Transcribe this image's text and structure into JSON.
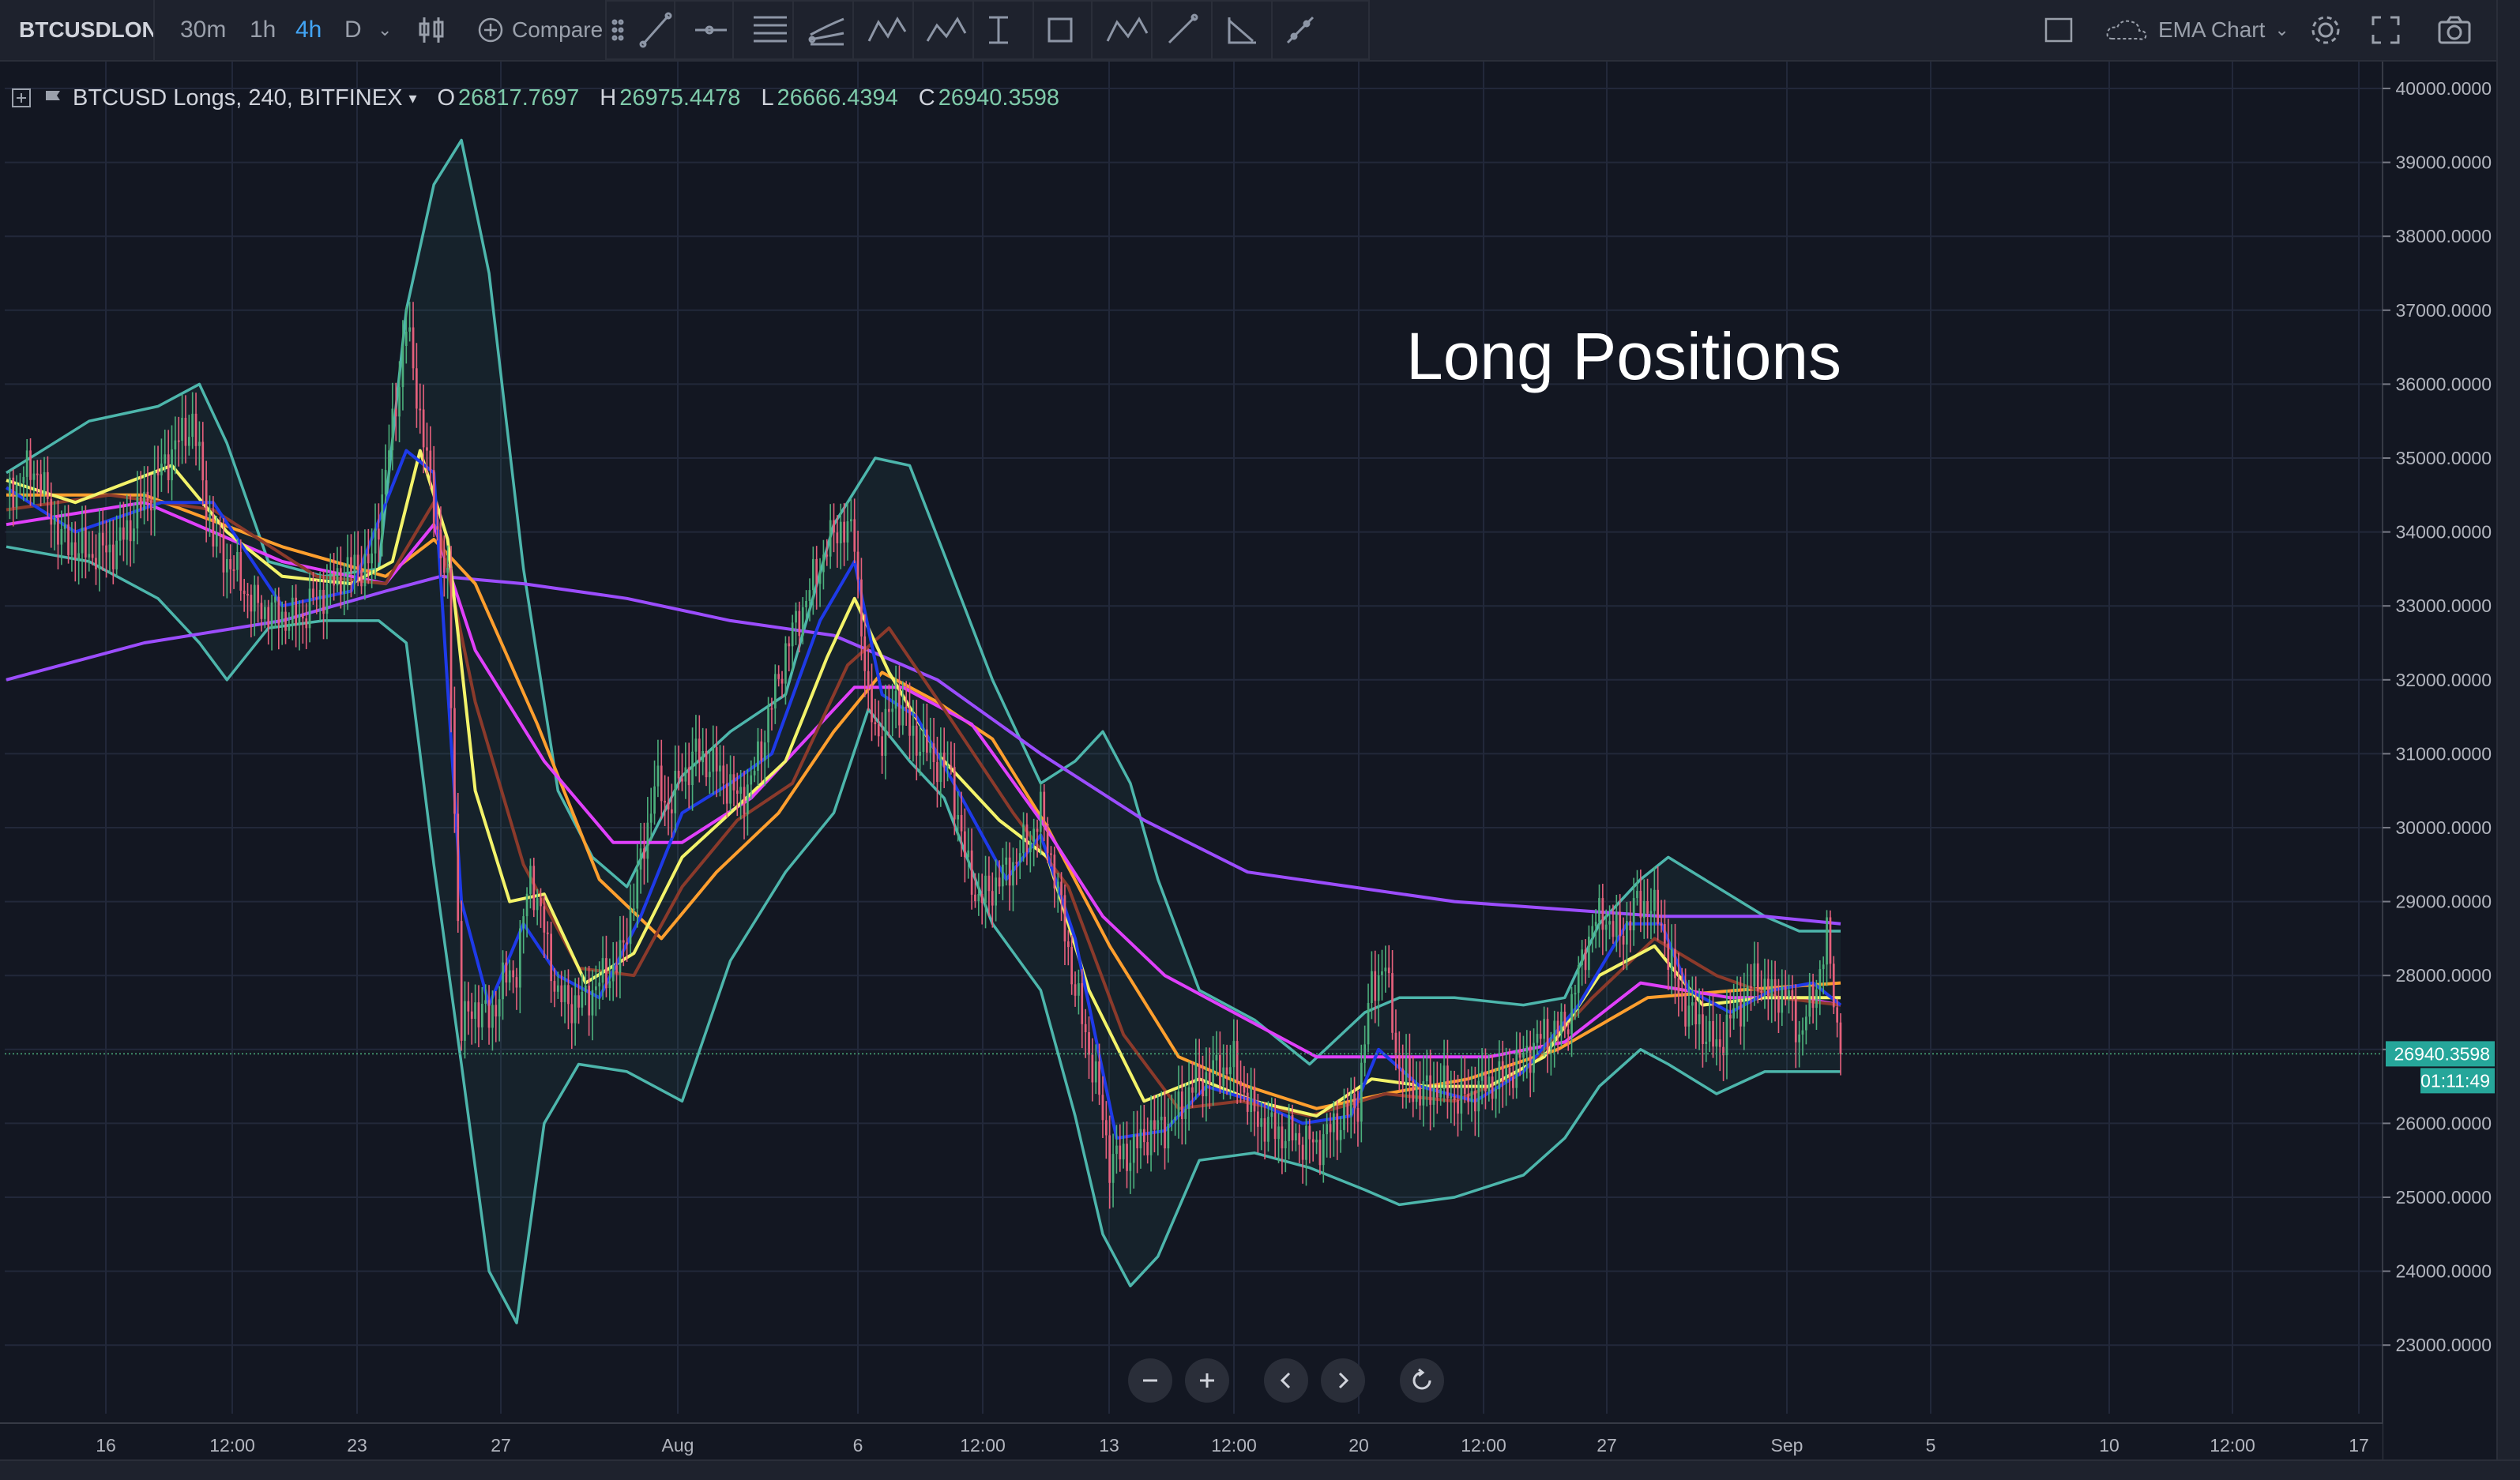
{
  "toolbar": {
    "symbol": "BTCUSDLON",
    "timeframes": [
      "30m",
      "1h",
      "4h",
      "D"
    ],
    "active_timeframe": "4h",
    "compare_label": "Compare",
    "chart_name": "EMA Chart",
    "icons": [
      "bar-style-icon",
      "compare-plus-icon",
      "drag-handle-icon",
      "trend-line-icon",
      "horizontal-ray-icon",
      "parallel-channel-icon",
      "pitchfork-icon",
      "xabcd-pattern-icon",
      "abcd-pattern-icon",
      "date-range-icon",
      "rectangle-icon",
      "abc-pattern-icon",
      "arrow-line-icon",
      "angle-icon",
      "cross-line-icon",
      "layout-icon",
      "settings-icon",
      "fullscreen-icon",
      "camera-icon"
    ]
  },
  "legend": {
    "title": "BTCUSD Longs, 240, BITFINEX",
    "o_label": "O",
    "o_value": "26817.7697",
    "h_label": "H",
    "h_value": "26975.4478",
    "l_label": "L",
    "l_value": "26666.4394",
    "c_label": "C",
    "c_value": "26940.3598"
  },
  "price_badge": {
    "price": "26940.3598",
    "countdown": "01:11:49",
    "color": "#26a69a"
  },
  "colors": {
    "background": "#131722",
    "grid": "#22283a",
    "up": "#4caf7c",
    "down": "#e5607c",
    "bollinger": "#4db6ac",
    "ema_blue": "#1e3ae8",
    "ema_yellow": "#f3f36a",
    "ema_brown": "#8b3a2b",
    "ema_magenta": "#e040fb",
    "ema_orange": "#ff9f2e",
    "ema_purple": "#9c4dff"
  },
  "chart_data": {
    "type": "candlestick",
    "title": "Long Positions",
    "y_axis_labels": [
      "40000.0000",
      "39000.0000",
      "38000.0000",
      "37000.0000",
      "36000.0000",
      "35000.0000",
      "34000.0000",
      "33000.0000",
      "32000.0000",
      "31000.0000",
      "30000.0000",
      "29000.0000",
      "28000.0000",
      "27000.0000",
      "26000.0000",
      "25000.0000",
      "24000.0000",
      "23000.0000"
    ],
    "ylim": [
      22100,
      40300
    ],
    "x_axis_labels": [
      "16",
      "12:00",
      "23",
      "27",
      "Aug",
      "6",
      "12:00",
      "13",
      "12:00",
      "20",
      "12:00",
      "27",
      "Sep",
      "5",
      "10",
      "12:00",
      "17"
    ],
    "grid": true,
    "close_path": [
      [
        0,
        34500
      ],
      [
        8,
        34900
      ],
      [
        16,
        33900
      ],
      [
        24,
        33700
      ],
      [
        32,
        33800
      ],
      [
        40,
        34400
      ],
      [
        48,
        35100
      ],
      [
        54,
        35500
      ],
      [
        60,
        33900
      ],
      [
        66,
        33500
      ],
      [
        72,
        33000
      ],
      [
        78,
        32900
      ],
      [
        84,
        32800
      ],
      [
        92,
        33200
      ],
      [
        100,
        33500
      ],
      [
        106,
        33600
      ],
      [
        112,
        35400
      ],
      [
        116,
        36800
      ],
      [
        120,
        35600
      ],
      [
        124,
        34300
      ],
      [
        128,
        33200
      ],
      [
        132,
        27300
      ],
      [
        136,
        27600
      ],
      [
        140,
        27400
      ],
      [
        144,
        27900
      ],
      [
        148,
        28100
      ],
      [
        152,
        29400
      ],
      [
        156,
        28600
      ],
      [
        160,
        27700
      ],
      [
        166,
        27600
      ],
      [
        172,
        27900
      ],
      [
        178,
        28200
      ],
      [
        184,
        29500
      ],
      [
        188,
        30600
      ],
      [
        192,
        30300
      ],
      [
        196,
        30700
      ],
      [
        200,
        31000
      ],
      [
        206,
        30800
      ],
      [
        212,
        30400
      ],
      [
        216,
        30600
      ],
      [
        220,
        31300
      ],
      [
        226,
        32400
      ],
      [
        232,
        33100
      ],
      [
        238,
        33800
      ],
      [
        242,
        34100
      ],
      [
        246,
        33900
      ],
      [
        250,
        31600
      ],
      [
        254,
        31200
      ],
      [
        258,
        31800
      ],
      [
        262,
        31300
      ],
      [
        268,
        31000
      ],
      [
        274,
        30700
      ],
      [
        278,
        29600
      ],
      [
        282,
        29000
      ],
      [
        286,
        29200
      ],
      [
        290,
        29400
      ],
      [
        296,
        29800
      ],
      [
        300,
        30200
      ],
      [
        304,
        29400
      ],
      [
        310,
        27800
      ],
      [
        316,
        26600
      ],
      [
        320,
        25500
      ],
      [
        326,
        25600
      ],
      [
        332,
        25900
      ],
      [
        338,
        26000
      ],
      [
        344,
        26500
      ],
      [
        350,
        26700
      ],
      [
        356,
        26800
      ],
      [
        362,
        26100
      ],
      [
        368,
        25900
      ],
      [
        374,
        25800
      ],
      [
        380,
        25700
      ],
      [
        386,
        26000
      ],
      [
        392,
        26300
      ],
      [
        396,
        27900
      ],
      [
        400,
        28100
      ],
      [
        404,
        26700
      ],
      [
        410,
        26400
      ],
      [
        416,
        26500
      ],
      [
        422,
        26300
      ],
      [
        428,
        26500
      ],
      [
        434,
        26600
      ],
      [
        440,
        26900
      ],
      [
        446,
        27200
      ],
      [
        452,
        27300
      ],
      [
        456,
        28000
      ],
      [
        460,
        28700
      ],
      [
        464,
        28800
      ],
      [
        468,
        28500
      ],
      [
        472,
        28900
      ],
      [
        476,
        29000
      ],
      [
        480,
        28700
      ],
      [
        484,
        27900
      ],
      [
        488,
        27500
      ],
      [
        492,
        27300
      ],
      [
        496,
        27000
      ],
      [
        500,
        27400
      ],
      [
        504,
        27700
      ],
      [
        508,
        28000
      ],
      [
        512,
        27700
      ],
      [
        516,
        27800
      ],
      [
        520,
        27200
      ],
      [
        524,
        27700
      ],
      [
        528,
        28500
      ],
      [
        532,
        26940
      ]
    ],
    "ema_fast_blue": [
      [
        0,
        34600
      ],
      [
        20,
        34000
      ],
      [
        45,
        34400
      ],
      [
        60,
        34400
      ],
      [
        80,
        33000
      ],
      [
        100,
        33200
      ],
      [
        116,
        35100
      ],
      [
        124,
        34800
      ],
      [
        132,
        29000
      ],
      [
        140,
        27600
      ],
      [
        150,
        28700
      ],
      [
        160,
        28000
      ],
      [
        172,
        27700
      ],
      [
        184,
        28800
      ],
      [
        196,
        30200
      ],
      [
        210,
        30600
      ],
      [
        222,
        31000
      ],
      [
        236,
        32800
      ],
      [
        246,
        33600
      ],
      [
        254,
        31800
      ],
      [
        264,
        31500
      ],
      [
        276,
        30500
      ],
      [
        290,
        29300
      ],
      [
        300,
        29900
      ],
      [
        310,
        28500
      ],
      [
        322,
        25800
      ],
      [
        336,
        25900
      ],
      [
        348,
        26500
      ],
      [
        362,
        26300
      ],
      [
        376,
        26000
      ],
      [
        390,
        26100
      ],
      [
        398,
        27000
      ],
      [
        410,
        26500
      ],
      [
        426,
        26300
      ],
      [
        440,
        26700
      ],
      [
        456,
        27600
      ],
      [
        470,
        28700
      ],
      [
        480,
        28700
      ],
      [
        488,
        27800
      ],
      [
        500,
        27500
      ],
      [
        512,
        27800
      ],
      [
        524,
        27900
      ],
      [
        532,
        27600
      ]
    ],
    "ema_yellow": [
      [
        0,
        34700
      ],
      [
        20,
        34400
      ],
      [
        48,
        34900
      ],
      [
        64,
        34000
      ],
      [
        80,
        33400
      ],
      [
        100,
        33300
      ],
      [
        112,
        33600
      ],
      [
        120,
        35100
      ],
      [
        128,
        33900
      ],
      [
        136,
        30500
      ],
      [
        146,
        29000
      ],
      [
        156,
        29100
      ],
      [
        168,
        27900
      ],
      [
        182,
        28300
      ],
      [
        196,
        29600
      ],
      [
        210,
        30200
      ],
      [
        226,
        30900
      ],
      [
        238,
        32300
      ],
      [
        246,
        33100
      ],
      [
        256,
        32100
      ],
      [
        270,
        31000
      ],
      [
        288,
        30100
      ],
      [
        302,
        29600
      ],
      [
        314,
        27800
      ],
      [
        330,
        26300
      ],
      [
        346,
        26600
      ],
      [
        362,
        26300
      ],
      [
        380,
        26100
      ],
      [
        396,
        26600
      ],
      [
        412,
        26500
      ],
      [
        430,
        26500
      ],
      [
        446,
        26900
      ],
      [
        462,
        28000
      ],
      [
        478,
        28400
      ],
      [
        492,
        27600
      ],
      [
        510,
        27700
      ],
      [
        524,
        27700
      ],
      [
        532,
        27700
      ]
    ],
    "ema_brown": [
      [
        0,
        34300
      ],
      [
        30,
        34500
      ],
      [
        60,
        34300
      ],
      [
        90,
        33400
      ],
      [
        110,
        33300
      ],
      [
        124,
        34400
      ],
      [
        136,
        31700
      ],
      [
        150,
        29500
      ],
      [
        166,
        28100
      ],
      [
        182,
        28000
      ],
      [
        196,
        29200
      ],
      [
        212,
        30100
      ],
      [
        228,
        30600
      ],
      [
        244,
        32200
      ],
      [
        256,
        32700
      ],
      [
        272,
        31600
      ],
      [
        292,
        30200
      ],
      [
        308,
        29200
      ],
      [
        324,
        27200
      ],
      [
        340,
        26200
      ],
      [
        358,
        26300
      ],
      [
        378,
        26100
      ],
      [
        400,
        26400
      ],
      [
        420,
        26300
      ],
      [
        440,
        26700
      ],
      [
        460,
        27700
      ],
      [
        478,
        28500
      ],
      [
        496,
        28000
      ],
      [
        514,
        27700
      ],
      [
        532,
        27600
      ]
    ],
    "ema_magenta": [
      [
        0,
        34100
      ],
      [
        40,
        34400
      ],
      [
        80,
        33600
      ],
      [
        110,
        33300
      ],
      [
        124,
        34100
      ],
      [
        136,
        32400
      ],
      [
        156,
        30900
      ],
      [
        176,
        29800
      ],
      [
        196,
        29800
      ],
      [
        216,
        30400
      ],
      [
        232,
        31200
      ],
      [
        246,
        31900
      ],
      [
        260,
        31900
      ],
      [
        280,
        31400
      ],
      [
        300,
        30100
      ],
      [
        318,
        28800
      ],
      [
        336,
        28000
      ],
      [
        356,
        27500
      ],
      [
        380,
        26900
      ],
      [
        404,
        26900
      ],
      [
        430,
        26900
      ],
      [
        452,
        27100
      ],
      [
        474,
        27900
      ],
      [
        500,
        27700
      ],
      [
        520,
        27700
      ],
      [
        532,
        27600
      ]
    ],
    "ema_orange": [
      [
        0,
        34500
      ],
      [
        40,
        34500
      ],
      [
        80,
        33800
      ],
      [
        110,
        33400
      ],
      [
        124,
        33900
      ],
      [
        136,
        33300
      ],
      [
        154,
        31400
      ],
      [
        172,
        29300
      ],
      [
        190,
        28500
      ],
      [
        206,
        29400
      ],
      [
        224,
        30200
      ],
      [
        240,
        31300
      ],
      [
        254,
        32100
      ],
      [
        270,
        31700
      ],
      [
        286,
        31200
      ],
      [
        302,
        30000
      ],
      [
        320,
        28400
      ],
      [
        340,
        26900
      ],
      [
        360,
        26500
      ],
      [
        380,
        26200
      ],
      [
        400,
        26400
      ],
      [
        424,
        26600
      ],
      [
        450,
        27000
      ],
      [
        476,
        27700
      ],
      [
        502,
        27800
      ],
      [
        532,
        27900
      ]
    ],
    "ema_purple": [
      [
        0,
        32000
      ],
      [
        40,
        32500
      ],
      [
        80,
        32800
      ],
      [
        110,
        33200
      ],
      [
        126,
        33400
      ],
      [
        150,
        33300
      ],
      [
        180,
        33100
      ],
      [
        210,
        32800
      ],
      [
        240,
        32600
      ],
      [
        270,
        32000
      ],
      [
        300,
        31000
      ],
      [
        330,
        30100
      ],
      [
        360,
        29400
      ],
      [
        390,
        29200
      ],
      [
        420,
        29000
      ],
      [
        450,
        28900
      ],
      [
        480,
        28800
      ],
      [
        510,
        28800
      ],
      [
        532,
        28700
      ]
    ],
    "bb_upper": [
      [
        0,
        34800
      ],
      [
        24,
        35500
      ],
      [
        44,
        35700
      ],
      [
        56,
        36000
      ],
      [
        64,
        35200
      ],
      [
        76,
        33600
      ],
      [
        92,
        33400
      ],
      [
        108,
        33500
      ],
      [
        116,
        37000
      ],
      [
        124,
        38700
      ],
      [
        132,
        39300
      ],
      [
        140,
        37500
      ],
      [
        150,
        33500
      ],
      [
        160,
        30500
      ],
      [
        170,
        29600
      ],
      [
        180,
        29200
      ],
      [
        196,
        30700
      ],
      [
        210,
        31300
      ],
      [
        226,
        31800
      ],
      [
        240,
        34100
      ],
      [
        252,
        35000
      ],
      [
        262,
        34900
      ],
      [
        272,
        33700
      ],
      [
        286,
        32000
      ],
      [
        300,
        30600
      ],
      [
        310,
        30900
      ],
      [
        318,
        31300
      ],
      [
        326,
        30600
      ],
      [
        334,
        29300
      ],
      [
        346,
        27800
      ],
      [
        362,
        27400
      ],
      [
        378,
        26800
      ],
      [
        394,
        27500
      ],
      [
        404,
        27700
      ],
      [
        420,
        27700
      ],
      [
        440,
        27600
      ],
      [
        452,
        27700
      ],
      [
        462,
        28700
      ],
      [
        474,
        29300
      ],
      [
        482,
        29600
      ],
      [
        496,
        29200
      ],
      [
        510,
        28800
      ],
      [
        520,
        28600
      ],
      [
        532,
        28600
      ]
    ],
    "bb_lower": [
      [
        0,
        33800
      ],
      [
        24,
        33600
      ],
      [
        44,
        33100
      ],
      [
        56,
        32500
      ],
      [
        64,
        32000
      ],
      [
        76,
        32700
      ],
      [
        92,
        32800
      ],
      [
        108,
        32800
      ],
      [
        116,
        32500
      ],
      [
        124,
        29500
      ],
      [
        132,
        26800
      ],
      [
        140,
        24000
      ],
      [
        148,
        23300
      ],
      [
        156,
        26000
      ],
      [
        166,
        26800
      ],
      [
        180,
        26700
      ],
      [
        196,
        26300
      ],
      [
        210,
        28200
      ],
      [
        226,
        29400
      ],
      [
        240,
        30200
      ],
      [
        250,
        31600
      ],
      [
        262,
        30900
      ],
      [
        272,
        30400
      ],
      [
        286,
        28700
      ],
      [
        300,
        27800
      ],
      [
        310,
        26100
      ],
      [
        318,
        24500
      ],
      [
        326,
        23800
      ],
      [
        334,
        24200
      ],
      [
        346,
        25500
      ],
      [
        362,
        25600
      ],
      [
        378,
        25400
      ],
      [
        394,
        25100
      ],
      [
        404,
        24900
      ],
      [
        420,
        25000
      ],
      [
        440,
        25300
      ],
      [
        452,
        25800
      ],
      [
        462,
        26500
      ],
      [
        474,
        27000
      ],
      [
        482,
        26800
      ],
      [
        496,
        26400
      ],
      [
        510,
        26700
      ],
      [
        520,
        26700
      ],
      [
        532,
        26700
      ]
    ]
  }
}
